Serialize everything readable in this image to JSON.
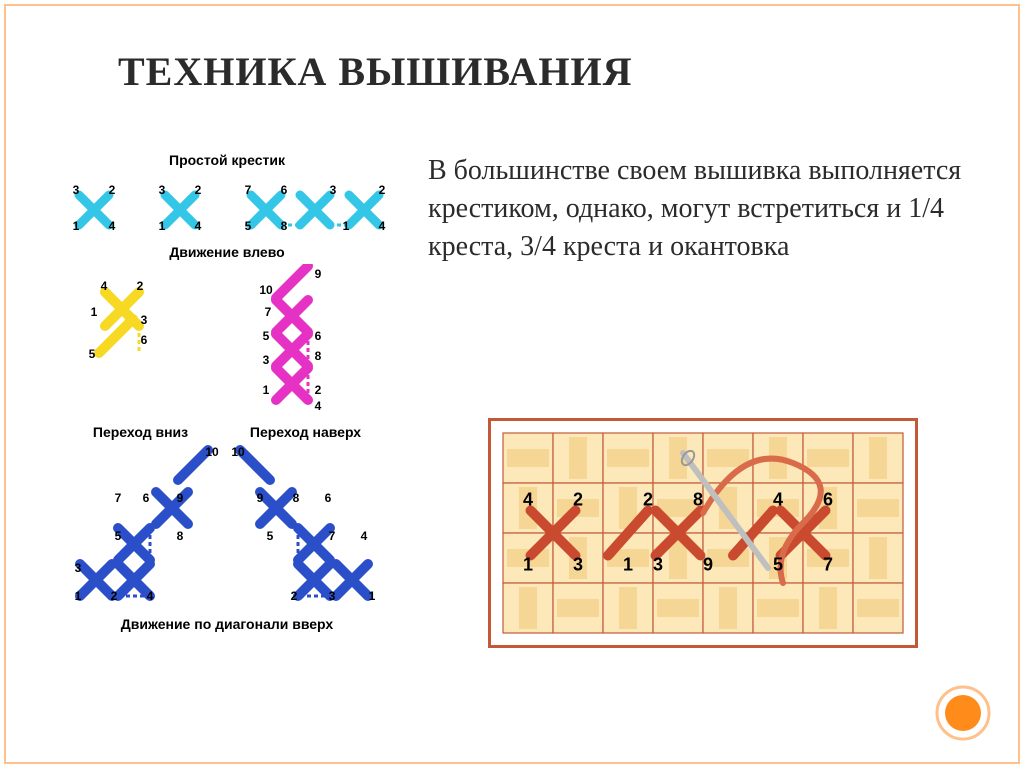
{
  "title": "ТЕХНИКА ВЫШИВАНИЯ",
  "body_text": "В большинстве своем вышивка выполняется крестиком, однако, могут встретиться и 1/4 креста, 3/4 креста и окантовка",
  "captions": {
    "simple": "Простой крестик",
    "left": "Движение влево",
    "down": "Переход вниз",
    "up": "Переход наверх",
    "diag": "Движение по диагонали вверх"
  },
  "colors": {
    "border": "#ffc089",
    "cyan": "#33c6e7",
    "yellow": "#f7d823",
    "magenta": "#e531c4",
    "blue": "#2b4fc9",
    "rust": "#c94a2e",
    "thread": "#d96a4a",
    "weave_light": "#fce8b8",
    "weave_dark": "#f3cf86",
    "weave_edge": "#c25a3a",
    "dot_fill": "#ff8c1a",
    "dot_ring": "#ffc089"
  },
  "simple_row": {
    "stroke_w": 9,
    "nums": [
      [
        "3",
        "2",
        "1",
        "4"
      ],
      [
        "3",
        "2",
        "1",
        "4"
      ],
      [
        "7",
        "6",
        "5",
        "8"
      ],
      [
        "3",
        "2",
        "1",
        "4"
      ]
    ]
  },
  "yellow": {
    "stroke_w": 10,
    "labels": [
      "4",
      "2",
      "1",
      "3",
      "5",
      "6"
    ]
  },
  "magenta": {
    "stroke_w": 10,
    "labels": [
      "9",
      "10",
      "7",
      "5",
      "6",
      "8",
      "3",
      "1",
      "2",
      "4"
    ]
  },
  "blue_left": {
    "stroke_w": 10,
    "labels": [
      "10",
      "7",
      "6",
      "9",
      "5",
      "8",
      "3",
      "1",
      "2",
      "4"
    ]
  },
  "blue_right": {
    "stroke_w": 10,
    "labels": [
      "10",
      "9",
      "8",
      "6",
      "5",
      "7",
      "4",
      "2",
      "3",
      "1"
    ]
  },
  "fabric": {
    "cols": 8,
    "rows": 4,
    "cell": 50,
    "labels": [
      "4",
      "2",
      "1",
      "3",
      "2",
      "8",
      "4",
      "6",
      "1",
      "3",
      "9",
      "5",
      "7"
    ]
  }
}
